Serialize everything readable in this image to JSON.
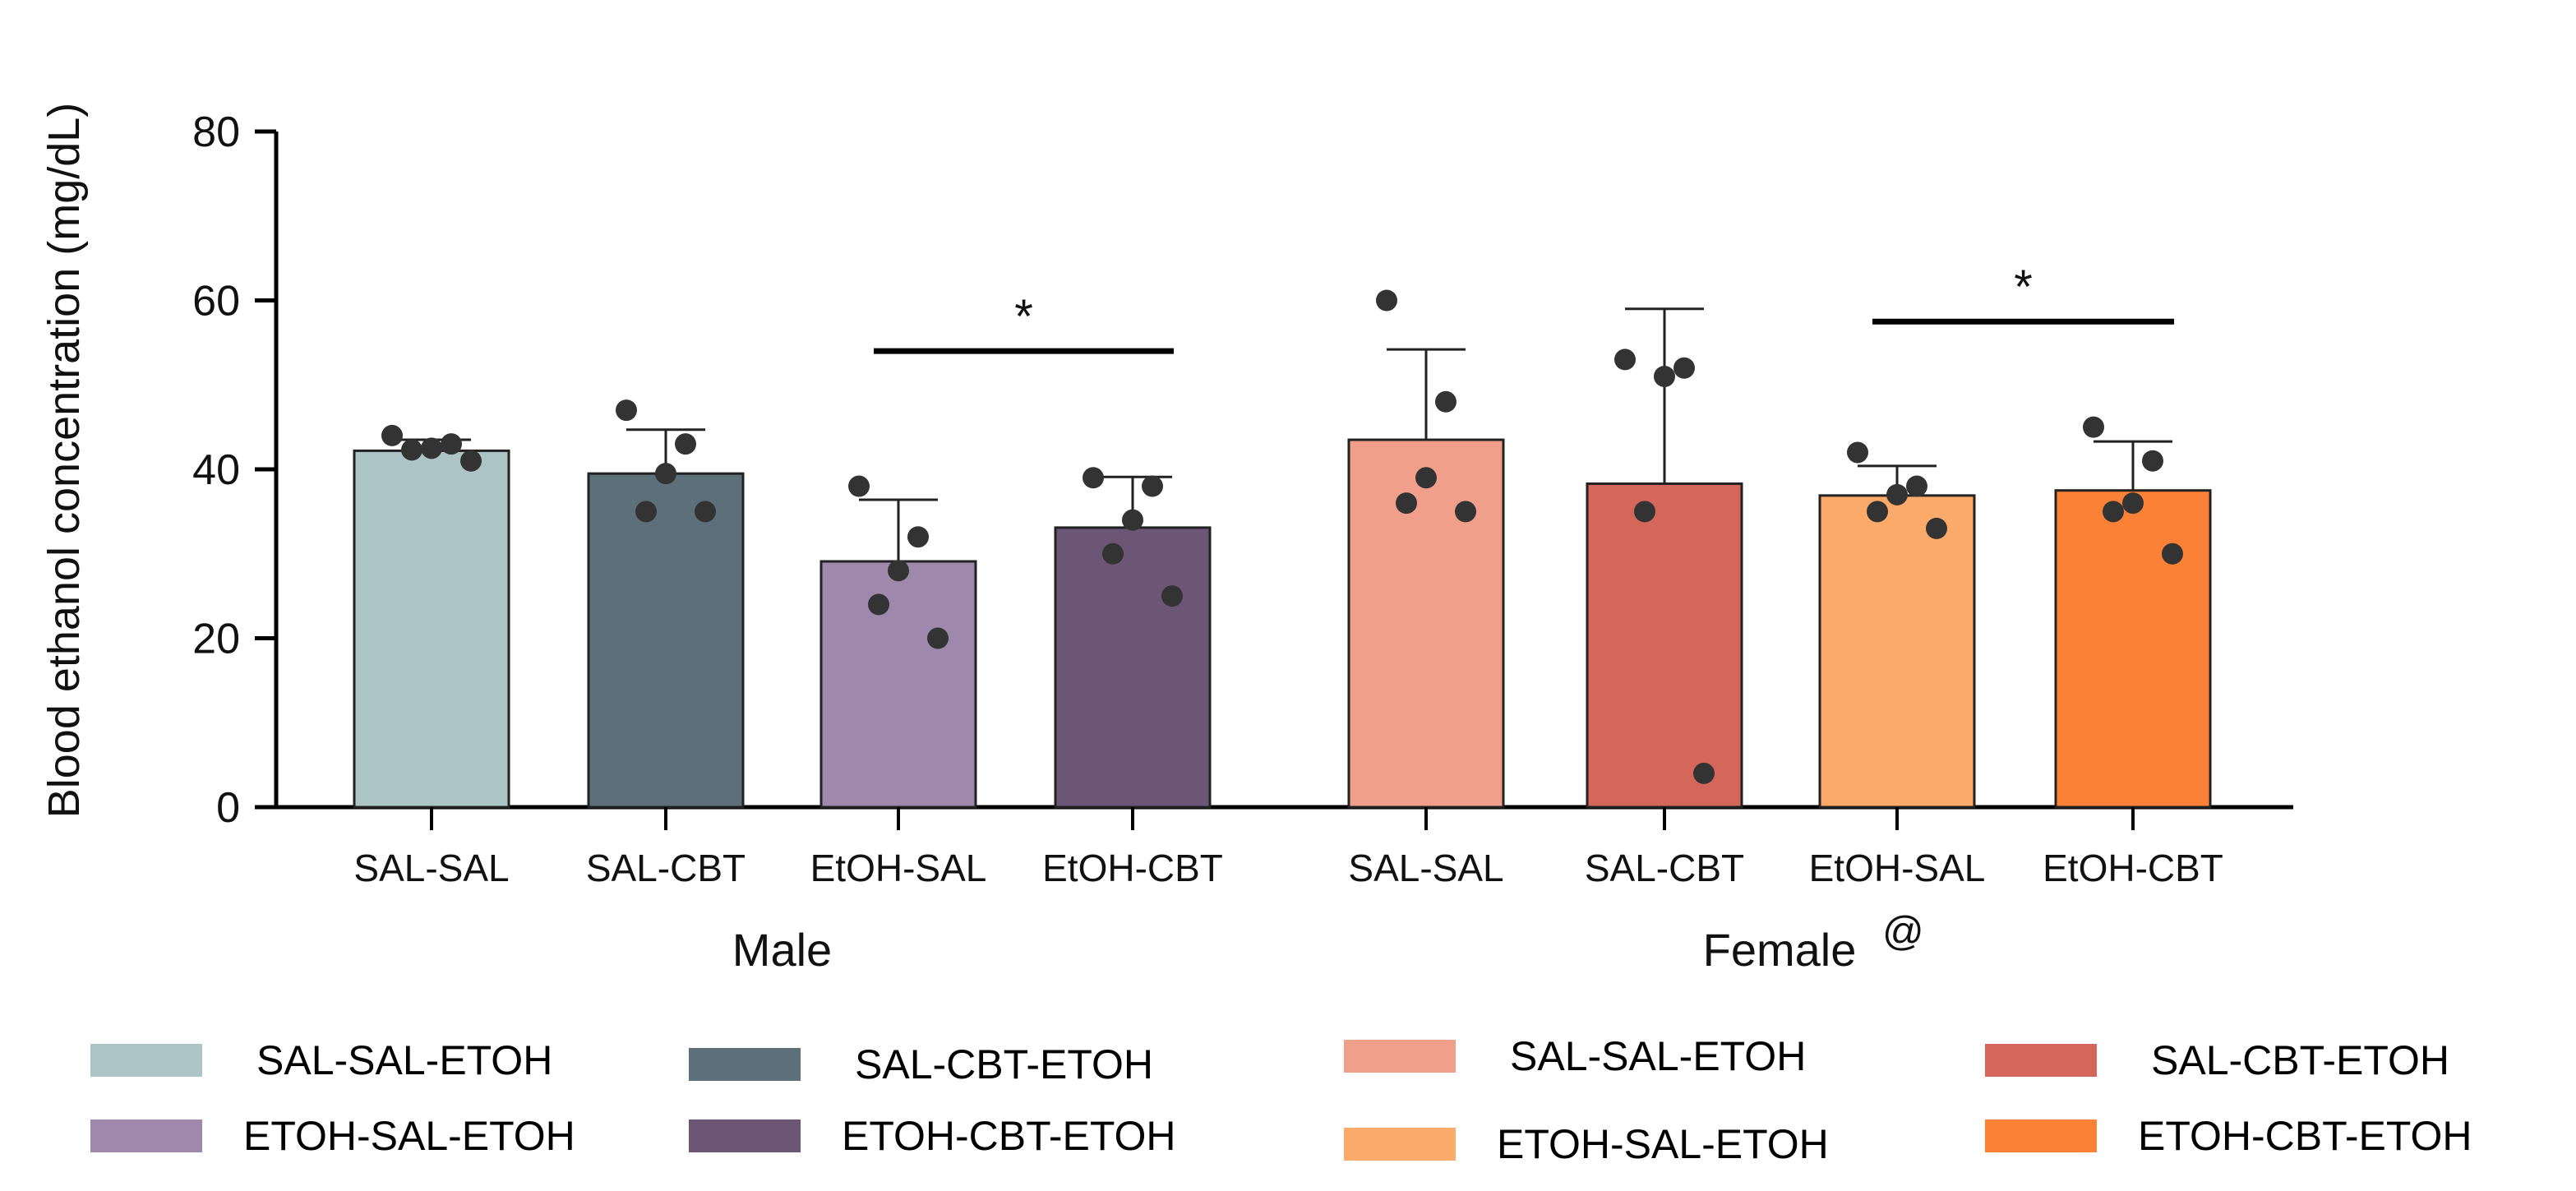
{
  "chart_data": {
    "type": "bar",
    "ylabel": "Blood ethanol concentration (mg/dL)",
    "ylim": [
      0,
      80
    ],
    "yticks": [
      0,
      20,
      40,
      60,
      80
    ],
    "groups": [
      {
        "label": "Male",
        "bars": [
          {
            "category": "SAL-SAL",
            "mean": 42.2,
            "sd": 1.3,
            "color": "#adc4c7",
            "points": [
              44,
              43,
              42.5,
              42.3,
              41
            ]
          },
          {
            "category": "SAL-CBT",
            "mean": 39.5,
            "sd": 5.2,
            "color": "#5d7079",
            "points": [
              47,
              43,
              39.5,
              35,
              35
            ]
          },
          {
            "category": "EtOH-SAL",
            "mean": 29.1,
            "sd": 7.3,
            "color": "#9e88ab",
            "points": [
              38,
              32,
              28,
              24,
              20
            ]
          },
          {
            "category": "EtOH-CBT",
            "mean": 33.1,
            "sd": 6.0,
            "color": "#6c5675",
            "points": [
              39,
              38,
              34,
              30,
              25
            ]
          }
        ]
      },
      {
        "label": "Female",
        "annotation": "@",
        "bars": [
          {
            "category": "SAL-SAL",
            "mean": 43.5,
            "sd": 10.7,
            "color": "#f0a08a",
            "points": [
              60,
              48,
              39,
              36,
              35
            ]
          },
          {
            "category": "SAL-CBT",
            "mean": 38.3,
            "sd": 20.7,
            "color": "#d4665a",
            "points": [
              53,
              52,
              51,
              35,
              4
            ]
          },
          {
            "category": "EtOH-SAL",
            "mean": 36.9,
            "sd": 3.5,
            "color": "#fbaa6a",
            "points": [
              42,
              38,
              37,
              35,
              33
            ]
          },
          {
            "category": "EtOH-CBT",
            "mean": 37.5,
            "sd": 5.8,
            "color": "#fb8136",
            "points": [
              45,
              41,
              36,
              35,
              30
            ]
          }
        ]
      }
    ],
    "significance": [
      {
        "group": 0,
        "from": 2,
        "to": 3,
        "y": 54,
        "label": "*"
      },
      {
        "group": 1,
        "from": 2,
        "to": 3,
        "y": 57.5,
        "label": "*"
      }
    ],
    "legend": [
      {
        "label": "SAL-SAL-ETOH",
        "color": "#adc4c7"
      },
      {
        "label": "SAL-CBT-ETOH",
        "color": "#5d7079"
      },
      {
        "label": "SAL-SAL-ETOH",
        "color": "#f0a08a"
      },
      {
        "label": "SAL-CBT-ETOH",
        "color": "#d4665a"
      },
      {
        "label": "ETOH-SAL-ETOH",
        "color": "#9e88ab"
      },
      {
        "label": "ETOH-CBT-ETOH",
        "color": "#6c5675"
      },
      {
        "label": "ETOH-SAL-ETOH",
        "color": "#fbaa6a"
      },
      {
        "label": "ETOH-CBT-ETOH",
        "color": "#fb8136"
      }
    ]
  }
}
